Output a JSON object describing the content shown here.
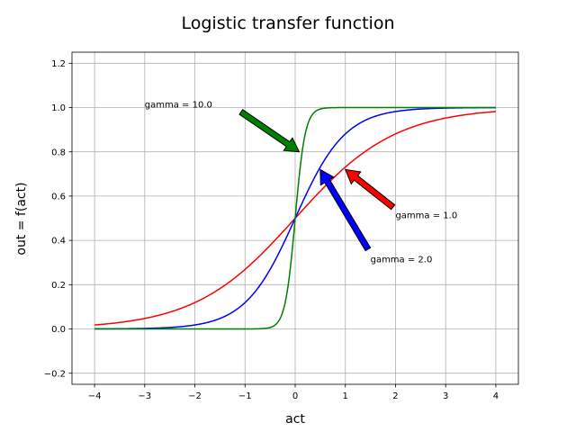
{
  "chart_data": {
    "type": "line",
    "title": "Logistic transfer function",
    "xlabel": "act",
    "ylabel": "out = f(act)",
    "xlim": [
      -4.45,
      4.45
    ],
    "ylim": [
      -0.25,
      1.25
    ],
    "grid": true,
    "xticks": [
      -4,
      -3,
      -2,
      -1,
      0,
      1,
      2,
      3,
      4
    ],
    "xtick_labels": [
      "−4",
      "−3",
      "−2",
      "−1",
      "0",
      "1",
      "2",
      "3",
      "4"
    ],
    "yticks": [
      -0.2,
      0.0,
      0.2,
      0.4,
      0.6,
      0.8,
      1.0,
      1.2
    ],
    "ytick_labels": [
      "−0.2",
      "0.0",
      "0.2",
      "0.4",
      "0.6",
      "0.8",
      "1.0",
      "1.2"
    ],
    "x_range": [
      -4,
      4
    ],
    "series": [
      {
        "gamma": 1.0,
        "color": "#ff0000"
      },
      {
        "gamma": 2.0,
        "color": "#0000ff"
      },
      {
        "gamma": 10.0,
        "color": "#008000"
      }
    ],
    "annotations": [
      {
        "text": "gamma = 1.0",
        "text_xy": [
          2.0,
          0.5
        ],
        "arrow_tail": [
          1.95,
          0.55
        ],
        "arrow_head": [
          1.0,
          0.72
        ],
        "color": "#ff0000"
      },
      {
        "text": "gamma = 2.0",
        "text_xy": [
          1.5,
          0.3
        ],
        "arrow_tail": [
          1.45,
          0.36
        ],
        "arrow_head": [
          0.5,
          0.72
        ],
        "color": "#0000ff"
      },
      {
        "text": "gamma = 10.0",
        "text_xy": [
          -3.0,
          1.0
        ],
        "arrow_tail": [
          -1.08,
          0.98
        ],
        "arrow_head": [
          0.08,
          0.8
        ],
        "color": "#008000"
      }
    ]
  }
}
